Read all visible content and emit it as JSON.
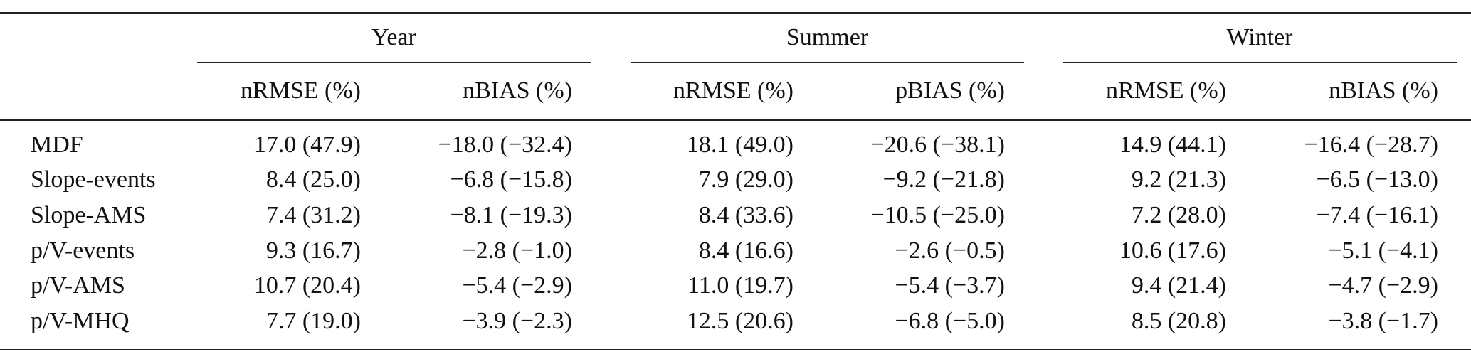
{
  "table": {
    "groups": [
      "Year",
      "Summer",
      "Winter"
    ],
    "columns": [
      "nRMSE (%)",
      "nBIAS (%)",
      "nRMSE (%)",
      "pBIAS (%)",
      "nRMSE (%)",
      "nBIAS (%)"
    ],
    "rows": [
      {
        "label": "MDF",
        "cells": [
          "17.0 (47.9)",
          "−18.0 (−32.4)",
          "18.1 (49.0)",
          "−20.6 (−38.1)",
          "14.9 (44.1)",
          "−16.4 (−28.7)"
        ]
      },
      {
        "label": "Slope-events",
        "cells": [
          "8.4 (25.0)",
          "−6.8 (−15.8)",
          "7.9 (29.0)",
          "−9.2 (−21.8)",
          "9.2 (21.3)",
          "−6.5 (−13.0)"
        ]
      },
      {
        "label": "Slope-AMS",
        "cells": [
          "7.4 (31.2)",
          "−8.1 (−19.3)",
          "8.4 (33.6)",
          "−10.5 (−25.0)",
          "7.2 (28.0)",
          "−7.4 (−16.1)"
        ]
      },
      {
        "label": "p/V-events",
        "cells": [
          "9.3 (16.7)",
          "−2.8 (−1.0)",
          "8.4 (16.6)",
          "−2.6 (−0.5)",
          "10.6 (17.6)",
          "−5.1 (−4.1)"
        ]
      },
      {
        "label": "p/V-AMS",
        "cells": [
          "10.7 (20.4)",
          "−5.4 (−2.9)",
          "11.0 (19.7)",
          "−5.4 (−3.7)",
          "9.4 (21.4)",
          "−4.7 (−2.9)"
        ]
      },
      {
        "label": "p/V-MHQ",
        "cells": [
          "7.7 (19.0)",
          "−3.9 (−2.3)",
          "12.5 (20.6)",
          "−6.8 (−5.0)",
          "8.5 (20.8)",
          "−3.8 (−1.7)"
        ]
      }
    ]
  }
}
